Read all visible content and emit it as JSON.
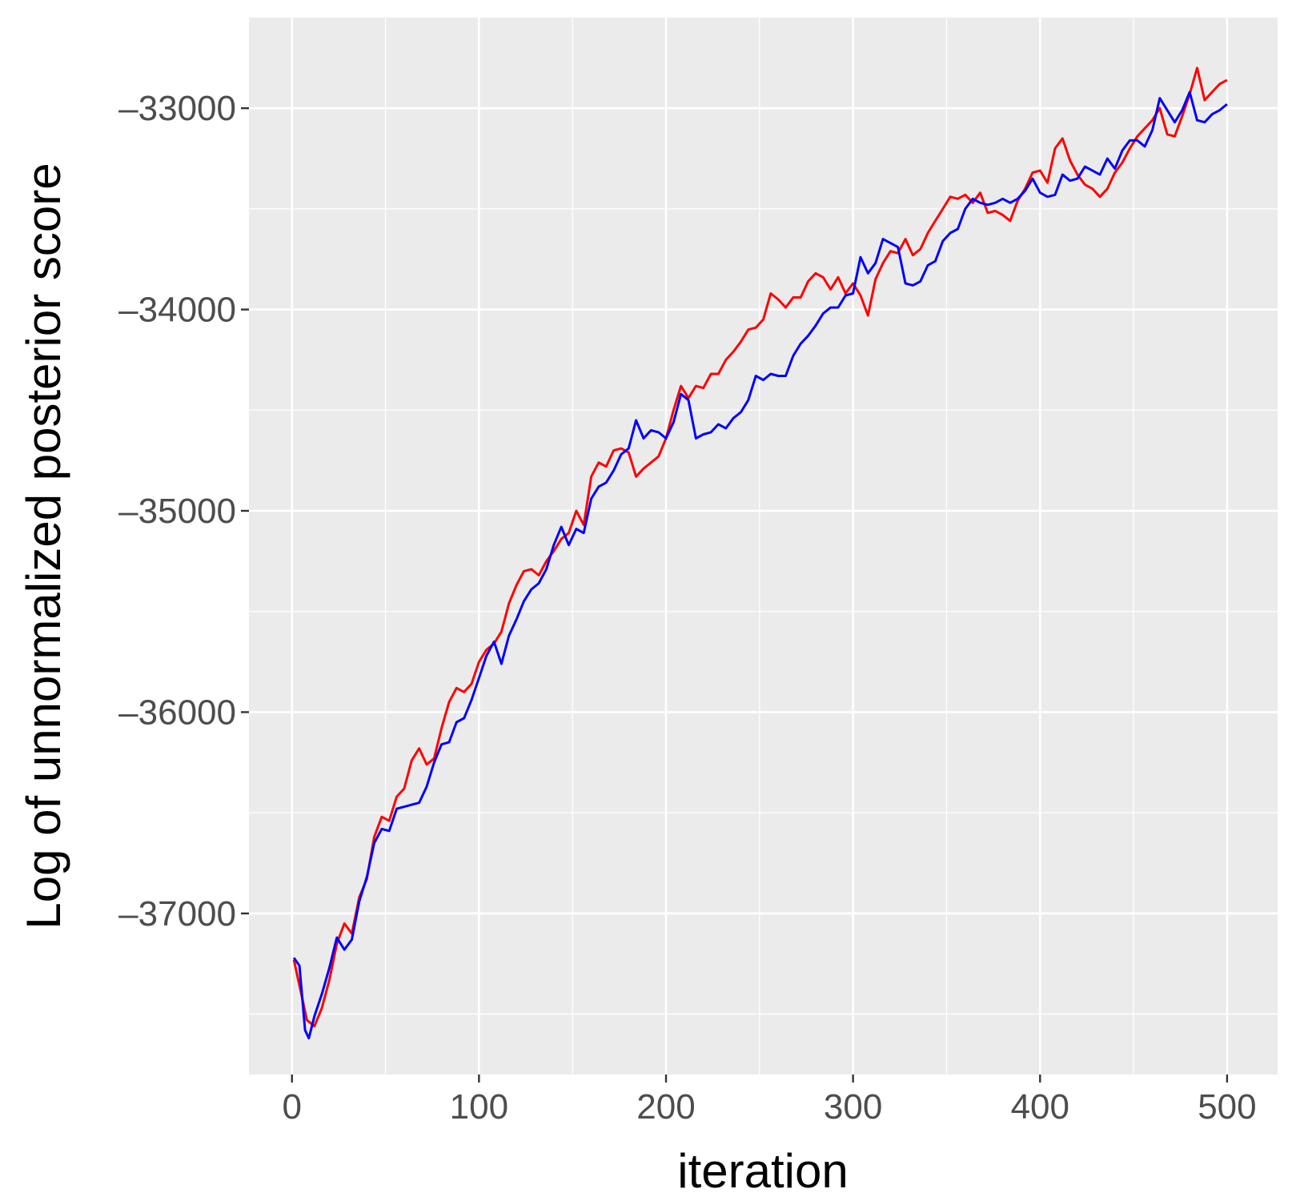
{
  "chart_data": {
    "type": "line",
    "title": "",
    "xlabel": "iteration",
    "ylabel": "Log of unnormalized posterior score",
    "xlim": [
      -23,
      527
    ],
    "ylim": [
      -37800,
      -32550
    ],
    "x_ticks": [
      0,
      100,
      200,
      300,
      400,
      500
    ],
    "x_tick_labels": [
      "0",
      "100",
      "200",
      "300",
      "400",
      "500"
    ],
    "y_ticks": [
      -37000,
      -36000,
      -35000,
      -34000,
      -33000
    ],
    "y_tick_labels": [
      "–37000",
      "–36000",
      "–35000",
      "–34000",
      "–33000"
    ],
    "grid": true,
    "legend": "none",
    "background": "#ebebeb",
    "series": [
      {
        "color": "#ff0000",
        "points": [
          [
            1,
            -37230
          ],
          [
            5,
            -37400
          ],
          [
            8,
            -37530
          ],
          [
            12,
            -37560
          ],
          [
            16,
            -37470
          ],
          [
            20,
            -37330
          ],
          [
            24,
            -37150
          ],
          [
            28,
            -37050
          ],
          [
            32,
            -37100
          ],
          [
            36,
            -36920
          ],
          [
            40,
            -36830
          ],
          [
            44,
            -36620
          ],
          [
            48,
            -36520
          ],
          [
            52,
            -36540
          ],
          [
            56,
            -36420
          ],
          [
            60,
            -36380
          ],
          [
            64,
            -36240
          ],
          [
            68,
            -36180
          ],
          [
            72,
            -36260
          ],
          [
            76,
            -36230
          ],
          [
            80,
            -36080
          ],
          [
            84,
            -35950
          ],
          [
            88,
            -35880
          ],
          [
            92,
            -35900
          ],
          [
            96,
            -35860
          ],
          [
            100,
            -35750
          ],
          [
            104,
            -35690
          ],
          [
            108,
            -35660
          ],
          [
            112,
            -35600
          ],
          [
            116,
            -35460
          ],
          [
            120,
            -35370
          ],
          [
            124,
            -35300
          ],
          [
            128,
            -35290
          ],
          [
            132,
            -35320
          ],
          [
            136,
            -35250
          ],
          [
            140,
            -35200
          ],
          [
            144,
            -35140
          ],
          [
            148,
            -35110
          ],
          [
            152,
            -35000
          ],
          [
            156,
            -35070
          ],
          [
            160,
            -34830
          ],
          [
            164,
            -34760
          ],
          [
            168,
            -34780
          ],
          [
            172,
            -34700
          ],
          [
            176,
            -34690
          ],
          [
            180,
            -34710
          ],
          [
            184,
            -34830
          ],
          [
            188,
            -34790
          ],
          [
            192,
            -34760
          ],
          [
            196,
            -34730
          ],
          [
            200,
            -34640
          ],
          [
            204,
            -34500
          ],
          [
            208,
            -34380
          ],
          [
            212,
            -34440
          ],
          [
            216,
            -34380
          ],
          [
            220,
            -34390
          ],
          [
            224,
            -34320
          ],
          [
            228,
            -34320
          ],
          [
            232,
            -34250
          ],
          [
            236,
            -34210
          ],
          [
            240,
            -34160
          ],
          [
            244,
            -34100
          ],
          [
            248,
            -34090
          ],
          [
            252,
            -34050
          ],
          [
            256,
            -33920
          ],
          [
            260,
            -33950
          ],
          [
            264,
            -33990
          ],
          [
            268,
            -33940
          ],
          [
            272,
            -33940
          ],
          [
            276,
            -33860
          ],
          [
            280,
            -33820
          ],
          [
            284,
            -33840
          ],
          [
            288,
            -33900
          ],
          [
            292,
            -33840
          ],
          [
            296,
            -33920
          ],
          [
            300,
            -33870
          ],
          [
            304,
            -33930
          ],
          [
            308,
            -34030
          ],
          [
            312,
            -33850
          ],
          [
            316,
            -33770
          ],
          [
            320,
            -33710
          ],
          [
            324,
            -33720
          ],
          [
            328,
            -33650
          ],
          [
            332,
            -33730
          ],
          [
            336,
            -33700
          ],
          [
            340,
            -33620
          ],
          [
            344,
            -33560
          ],
          [
            348,
            -33500
          ],
          [
            352,
            -33440
          ],
          [
            356,
            -33450
          ],
          [
            360,
            -33430
          ],
          [
            364,
            -33470
          ],
          [
            368,
            -33420
          ],
          [
            372,
            -33520
          ],
          [
            376,
            -33510
          ],
          [
            380,
            -33530
          ],
          [
            384,
            -33560
          ],
          [
            388,
            -33460
          ],
          [
            392,
            -33400
          ],
          [
            396,
            -33320
          ],
          [
            400,
            -33310
          ],
          [
            404,
            -33370
          ],
          [
            408,
            -33200
          ],
          [
            412,
            -33150
          ],
          [
            416,
            -33260
          ],
          [
            420,
            -33330
          ],
          [
            424,
            -33380
          ],
          [
            428,
            -33400
          ],
          [
            432,
            -33440
          ],
          [
            436,
            -33400
          ],
          [
            440,
            -33320
          ],
          [
            444,
            -33270
          ],
          [
            448,
            -33200
          ],
          [
            452,
            -33140
          ],
          [
            456,
            -33100
          ],
          [
            460,
            -33060
          ],
          [
            464,
            -33000
          ],
          [
            468,
            -33130
          ],
          [
            472,
            -33140
          ],
          [
            476,
            -33040
          ],
          [
            480,
            -32930
          ],
          [
            484,
            -32800
          ],
          [
            488,
            -32960
          ],
          [
            492,
            -32920
          ],
          [
            496,
            -32880
          ],
          [
            500,
            -32860
          ]
        ]
      },
      {
        "color": "#0000ff",
        "points": [
          [
            1,
            -37220
          ],
          [
            4,
            -37260
          ],
          [
            7,
            -37580
          ],
          [
            9,
            -37620
          ],
          [
            12,
            -37510
          ],
          [
            16,
            -37400
          ],
          [
            20,
            -37270
          ],
          [
            24,
            -37120
          ],
          [
            28,
            -37180
          ],
          [
            32,
            -37130
          ],
          [
            36,
            -36940
          ],
          [
            40,
            -36820
          ],
          [
            44,
            -36650
          ],
          [
            48,
            -36580
          ],
          [
            52,
            -36590
          ],
          [
            56,
            -36480
          ],
          [
            60,
            -36470
          ],
          [
            64,
            -36460
          ],
          [
            68,
            -36450
          ],
          [
            72,
            -36370
          ],
          [
            76,
            -36250
          ],
          [
            80,
            -36160
          ],
          [
            84,
            -36150
          ],
          [
            88,
            -36050
          ],
          [
            92,
            -36030
          ],
          [
            96,
            -35940
          ],
          [
            100,
            -35830
          ],
          [
            104,
            -35720
          ],
          [
            108,
            -35650
          ],
          [
            112,
            -35760
          ],
          [
            116,
            -35620
          ],
          [
            120,
            -35540
          ],
          [
            124,
            -35450
          ],
          [
            128,
            -35390
          ],
          [
            132,
            -35360
          ],
          [
            136,
            -35290
          ],
          [
            140,
            -35170
          ],
          [
            144,
            -35080
          ],
          [
            148,
            -35170
          ],
          [
            152,
            -35090
          ],
          [
            156,
            -35110
          ],
          [
            160,
            -34940
          ],
          [
            164,
            -34880
          ],
          [
            168,
            -34860
          ],
          [
            172,
            -34800
          ],
          [
            176,
            -34720
          ],
          [
            180,
            -34690
          ],
          [
            184,
            -34550
          ],
          [
            188,
            -34640
          ],
          [
            192,
            -34600
          ],
          [
            196,
            -34610
          ],
          [
            200,
            -34640
          ],
          [
            204,
            -34560
          ],
          [
            208,
            -34420
          ],
          [
            212,
            -34450
          ],
          [
            216,
            -34640
          ],
          [
            220,
            -34620
          ],
          [
            224,
            -34610
          ],
          [
            228,
            -34570
          ],
          [
            232,
            -34590
          ],
          [
            236,
            -34540
          ],
          [
            240,
            -34510
          ],
          [
            244,
            -34450
          ],
          [
            248,
            -34330
          ],
          [
            252,
            -34350
          ],
          [
            256,
            -34320
          ],
          [
            260,
            -34330
          ],
          [
            264,
            -34330
          ],
          [
            268,
            -34230
          ],
          [
            272,
            -34170
          ],
          [
            276,
            -34130
          ],
          [
            280,
            -34080
          ],
          [
            284,
            -34020
          ],
          [
            288,
            -33990
          ],
          [
            292,
            -33990
          ],
          [
            296,
            -33930
          ],
          [
            300,
            -33920
          ],
          [
            304,
            -33740
          ],
          [
            308,
            -33820
          ],
          [
            312,
            -33770
          ],
          [
            316,
            -33650
          ],
          [
            320,
            -33670
          ],
          [
            324,
            -33690
          ],
          [
            328,
            -33870
          ],
          [
            332,
            -33880
          ],
          [
            336,
            -33860
          ],
          [
            340,
            -33780
          ],
          [
            344,
            -33760
          ],
          [
            348,
            -33660
          ],
          [
            352,
            -33620
          ],
          [
            356,
            -33600
          ],
          [
            360,
            -33500
          ],
          [
            364,
            -33450
          ],
          [
            368,
            -33470
          ],
          [
            372,
            -33480
          ],
          [
            376,
            -33470
          ],
          [
            380,
            -33450
          ],
          [
            384,
            -33470
          ],
          [
            388,
            -33450
          ],
          [
            392,
            -33410
          ],
          [
            396,
            -33350
          ],
          [
            400,
            -33420
          ],
          [
            404,
            -33440
          ],
          [
            408,
            -33430
          ],
          [
            412,
            -33330
          ],
          [
            416,
            -33360
          ],
          [
            420,
            -33350
          ],
          [
            424,
            -33290
          ],
          [
            428,
            -33310
          ],
          [
            432,
            -33330
          ],
          [
            436,
            -33250
          ],
          [
            440,
            -33300
          ],
          [
            444,
            -33210
          ],
          [
            448,
            -33160
          ],
          [
            452,
            -33160
          ],
          [
            456,
            -33190
          ],
          [
            460,
            -33110
          ],
          [
            464,
            -32950
          ],
          [
            468,
            -33010
          ],
          [
            472,
            -33070
          ],
          [
            476,
            -33010
          ],
          [
            480,
            -32920
          ],
          [
            484,
            -33060
          ],
          [
            488,
            -33070
          ],
          [
            492,
            -33030
          ],
          [
            496,
            -33010
          ],
          [
            500,
            -32980
          ]
        ]
      }
    ]
  }
}
